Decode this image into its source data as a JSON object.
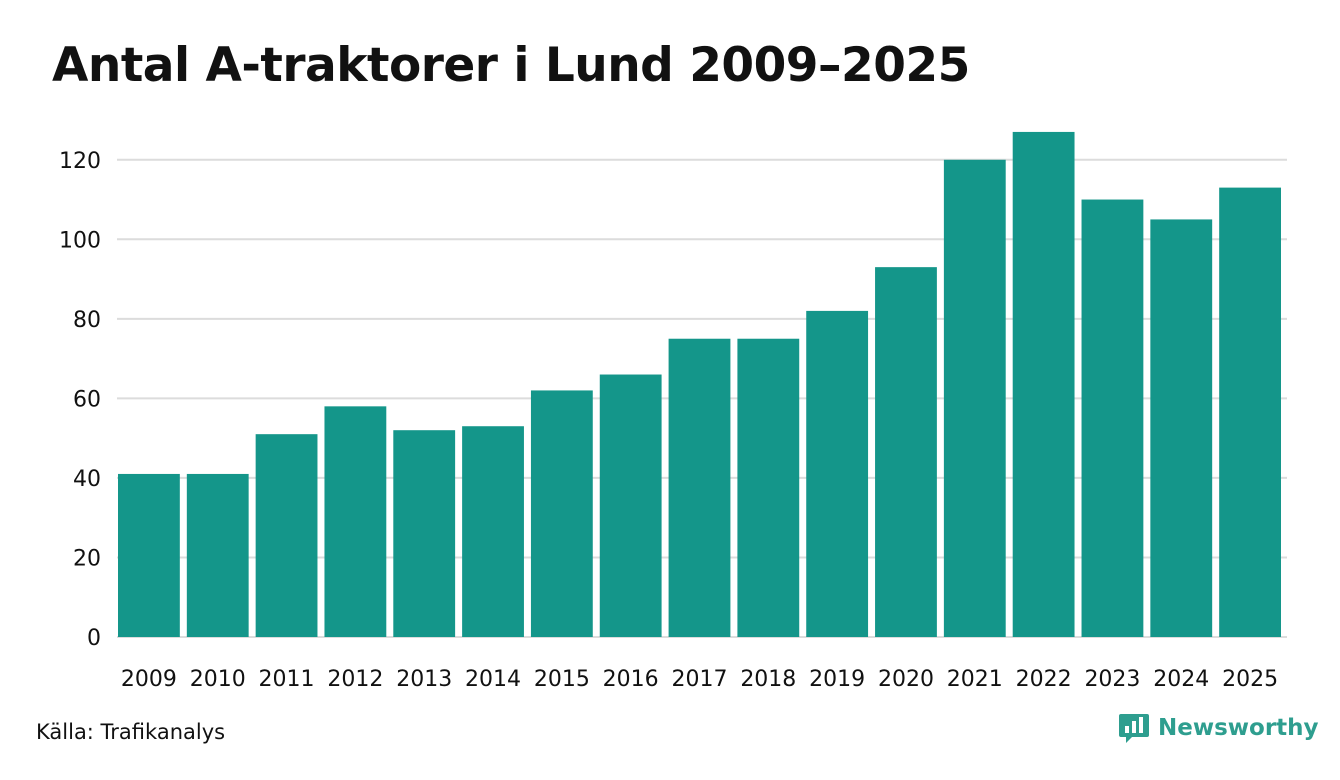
{
  "chart_data": {
    "type": "bar",
    "title": "Antal A-traktorer i Lund 2009–2025",
    "xlabel": "",
    "ylabel": "",
    "categories": [
      "2009",
      "2010",
      "2011",
      "2012",
      "2013",
      "2014",
      "2015",
      "2016",
      "2017",
      "2018",
      "2019",
      "2020",
      "2021",
      "2022",
      "2023",
      "2024",
      "2025"
    ],
    "values": [
      41,
      41,
      51,
      58,
      52,
      53,
      62,
      66,
      75,
      75,
      82,
      93,
      120,
      127,
      110,
      105,
      113
    ],
    "ylim": [
      0,
      130
    ],
    "yticks": [
      0,
      20,
      40,
      60,
      80,
      100,
      120
    ],
    "grid": true,
    "bar_color": "#14968a",
    "grid_color": "#dcdcdc"
  },
  "footer": {
    "source": "Källa: Trafikanalys",
    "brand": "Newsworthy",
    "brand_icon": "bar-chart-speech-icon",
    "brand_color": "#2e9e8f"
  }
}
